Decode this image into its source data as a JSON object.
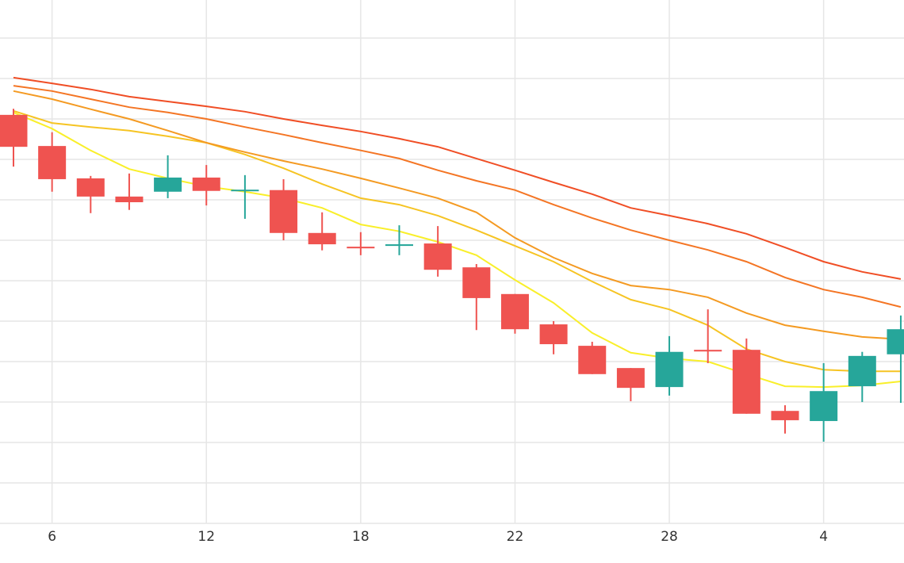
{
  "chart_data": {
    "type": "candlestick",
    "categories": [
      null,
      "6",
      null,
      null,
      null,
      "12",
      null,
      null,
      null,
      "18",
      null,
      null,
      null,
      "22",
      null,
      null,
      null,
      "28",
      null,
      null,
      null,
      "4",
      null,
      null
    ],
    "open": [
      10.1,
      9.33,
      8.53,
      8.08,
      8.2,
      8.55,
      8.22,
      8.24,
      7.18,
      6.84,
      6.86,
      6.92,
      6.33,
      5.67,
      4.92,
      4.39,
      3.84,
      3.37,
      4.29,
      4.29,
      2.78,
      2.53,
      3.39,
      4.18
    ],
    "high": [
      10.25,
      9.67,
      8.59,
      8.65,
      9.1,
      8.86,
      8.61,
      8.51,
      7.69,
      7.2,
      7.37,
      7.35,
      6.41,
      5.67,
      5.0,
      4.49,
      3.84,
      4.63,
      5.29,
      4.57,
      2.92,
      3.96,
      4.24,
      5.14
    ],
    "low": [
      8.82,
      8.2,
      7.67,
      7.75,
      8.04,
      7.86,
      7.53,
      7.0,
      6.75,
      6.63,
      6.63,
      6.1,
      4.78,
      4.69,
      4.18,
      3.69,
      3.02,
      3.16,
      3.96,
      2.71,
      2.22,
      2.02,
      3.0,
      2.98
    ],
    "close": [
      9.31,
      8.51,
      8.08,
      7.94,
      8.55,
      8.22,
      8.25,
      7.18,
      6.9,
      6.8,
      6.9,
      6.27,
      5.57,
      4.8,
      4.43,
      3.69,
      3.35,
      4.24,
      4.25,
      2.71,
      2.55,
      3.27,
      4.14,
      4.8
    ],
    "up_color": "#26a69a",
    "down_color": "#ef5350",
    "lines": [
      {
        "color": "#f9ef2a",
        "values": [
          10.16,
          9.76,
          9.22,
          8.76,
          8.53,
          8.33,
          8.2,
          8.04,
          7.8,
          7.39,
          7.22,
          6.96,
          6.63,
          6.02,
          5.45,
          4.71,
          4.22,
          4.08,
          4.0,
          3.69,
          3.39,
          3.37,
          3.41,
          3.51
        ]
      },
      {
        "color": "#f6c423",
        "values": [
          10.2,
          9.9,
          9.8,
          9.71,
          9.57,
          9.41,
          9.12,
          8.78,
          8.39,
          8.04,
          7.88,
          7.61,
          7.25,
          6.86,
          6.47,
          5.98,
          5.53,
          5.29,
          4.9,
          4.31,
          4.0,
          3.8,
          3.76,
          3.76
        ]
      },
      {
        "color": "#f49a22",
        "values": [
          10.69,
          10.49,
          10.24,
          10.0,
          9.71,
          9.41,
          9.18,
          8.96,
          8.76,
          8.53,
          8.29,
          8.04,
          7.69,
          7.06,
          6.57,
          6.18,
          5.88,
          5.78,
          5.59,
          5.2,
          4.9,
          4.75,
          4.61,
          4.55
        ]
      },
      {
        "color": "#f47524",
        "values": [
          10.82,
          10.69,
          10.49,
          10.29,
          10.16,
          10.0,
          9.8,
          9.61,
          9.41,
          9.22,
          9.02,
          8.73,
          8.47,
          8.24,
          7.88,
          7.55,
          7.25,
          7.0,
          6.76,
          6.47,
          6.08,
          5.78,
          5.59,
          5.35
        ]
      },
      {
        "color": "#f04e25",
        "values": [
          11.02,
          10.88,
          10.73,
          10.55,
          10.43,
          10.31,
          10.18,
          10.0,
          9.84,
          9.69,
          9.51,
          9.31,
          9.02,
          8.73,
          8.43,
          8.14,
          7.8,
          7.61,
          7.41,
          7.16,
          6.82,
          6.47,
          6.22,
          6.04
        ]
      }
    ],
    "ylim": [
      0,
      12.94
    ],
    "yticks": [
      0,
      1,
      2,
      3,
      4,
      5,
      6,
      7,
      8,
      9,
      10,
      11,
      12
    ],
    "grid": true
  }
}
